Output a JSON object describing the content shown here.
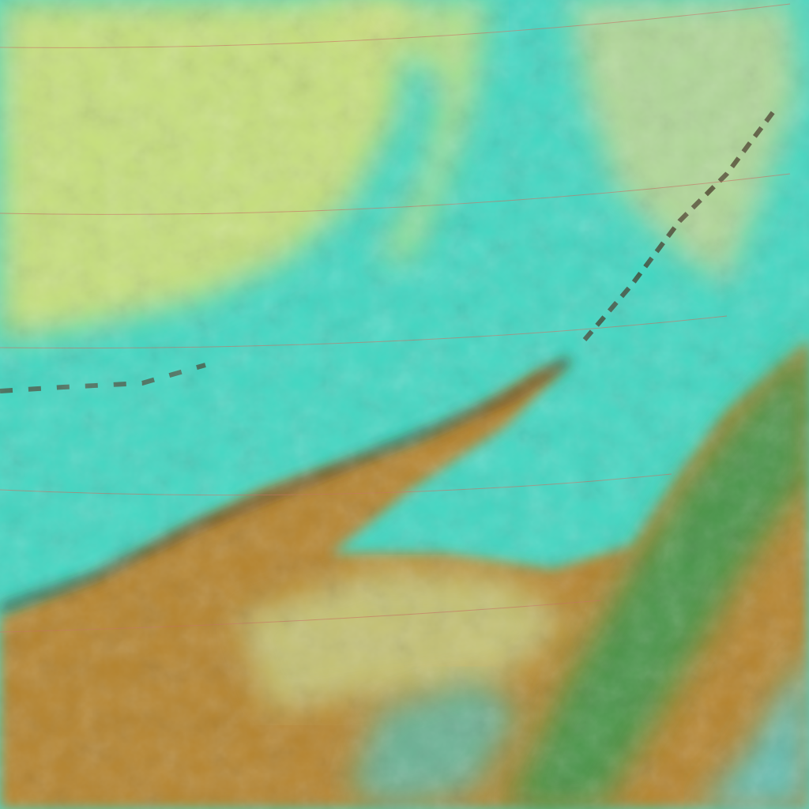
{
  "image": {
    "kind": "false-color satellite imagery",
    "colors": {
      "ocean": "#3fd6bf",
      "clear_water": "#4ed8c4",
      "upper_cloud": "#c8e07a",
      "land_brown": "#b07a2a",
      "land_dark": "#6a4a18",
      "vegetation": "#2f9a4a",
      "ridge_shadow": "#3a2a18",
      "graticule": "#c86a5a"
    }
  }
}
